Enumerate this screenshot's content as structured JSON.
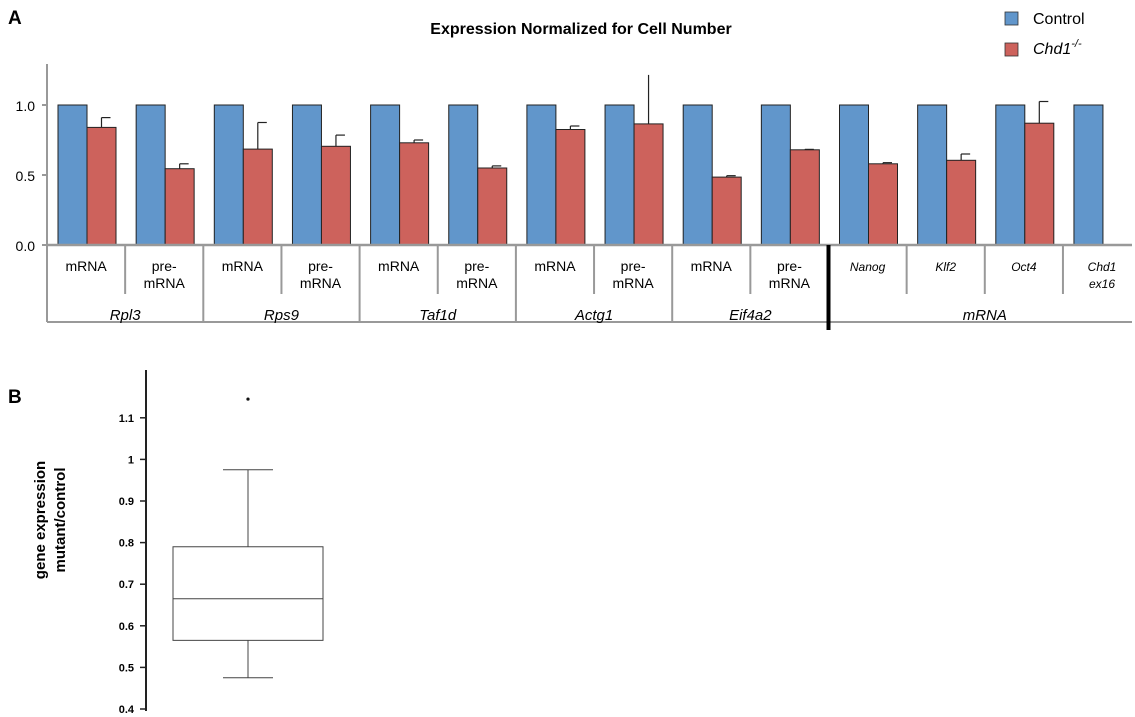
{
  "panels": {
    "a_label": "A",
    "b_label": "B"
  },
  "colors": {
    "control": "#6196cb",
    "mutant": "#cd625c",
    "axis": "#999999"
  },
  "chart_data": [
    {
      "type": "bar",
      "title": "Expression Normalized for Cell Number",
      "ylim": [
        0,
        1.2
      ],
      "yticks": [
        "0.0",
        "0.5",
        "1.0"
      ],
      "legend": {
        "placement": "top-right",
        "entries": [
          {
            "name": "Control",
            "sup": ""
          },
          {
            "name": "Chd1",
            "sup": "-/-"
          }
        ]
      },
      "categories": [
        {
          "line1": "mRNA",
          "line2": "",
          "italic": false
        },
        {
          "line1": "pre-",
          "line2": "mRNA",
          "italic": false
        },
        {
          "line1": "mRNA",
          "line2": "",
          "italic": false
        },
        {
          "line1": "pre-",
          "line2": "mRNA",
          "italic": false
        },
        {
          "line1": "mRNA",
          "line2": "",
          "italic": false
        },
        {
          "line1": "pre-",
          "line2": "mRNA",
          "italic": false
        },
        {
          "line1": "mRNA",
          "line2": "",
          "italic": false
        },
        {
          "line1": "pre-",
          "line2": "mRNA",
          "italic": false
        },
        {
          "line1": "mRNA",
          "line2": "",
          "italic": false
        },
        {
          "line1": "pre-",
          "line2": "mRNA",
          "italic": false
        },
        {
          "line1": "Nanog",
          "line2": "",
          "italic": true
        },
        {
          "line1": "Klf2",
          "line2": "",
          "italic": true
        },
        {
          "line1": "Oct4",
          "line2": "",
          "italic": true
        },
        {
          "line1": "Chd1",
          "line2": "ex16",
          "italic": true
        }
      ],
      "groups": [
        {
          "label": "Rpl3",
          "span": [
            0,
            1
          ]
        },
        {
          "label": "Rps9",
          "span": [
            2,
            3
          ]
        },
        {
          "label": "Taf1d",
          "span": [
            4,
            5
          ]
        },
        {
          "label": "Actg1",
          "span": [
            6,
            7
          ]
        },
        {
          "label": "Eif4a2",
          "span": [
            8,
            9
          ]
        },
        {
          "label": "mRNA",
          "span": [
            10,
            13
          ]
        }
      ],
      "separator_after_category": 9,
      "series": [
        {
          "name": "Control",
          "values": [
            1,
            1,
            1,
            1,
            1,
            1,
            1,
            1,
            1,
            1,
            1,
            1,
            1,
            1
          ]
        },
        {
          "name": "Chd1-/-",
          "values": [
            0.84,
            0.545,
            0.685,
            0.705,
            0.73,
            0.55,
            0.825,
            0.865,
            0.485,
            0.68,
            0.58,
            0.605,
            0.87,
            null
          ],
          "errors": [
            0.07,
            0.035,
            0.19,
            0.08,
            0.02,
            0.015,
            0.025,
            0.35,
            0.01,
            0.003,
            0.008,
            0.045,
            0.155,
            null
          ]
        }
      ]
    },
    {
      "type": "box",
      "ylabel_line1": "gene expression",
      "ylabel_line2": "mutant/control",
      "ylim": [
        0.39,
        1.17
      ],
      "yticks": [
        "0.4",
        "0.5",
        "0.6",
        "0.7",
        "0.8",
        "0.9",
        "1",
        "1.1"
      ],
      "ytick_values": [
        0.4,
        0.5,
        0.6,
        0.7,
        0.8,
        0.9,
        1.0,
        1.1
      ],
      "box": {
        "whisker_low": 0.475,
        "q1": 0.565,
        "median": 0.665,
        "q3": 0.79,
        "whisker_high": 0.975,
        "outliers": [
          1.145
        ]
      }
    }
  ]
}
